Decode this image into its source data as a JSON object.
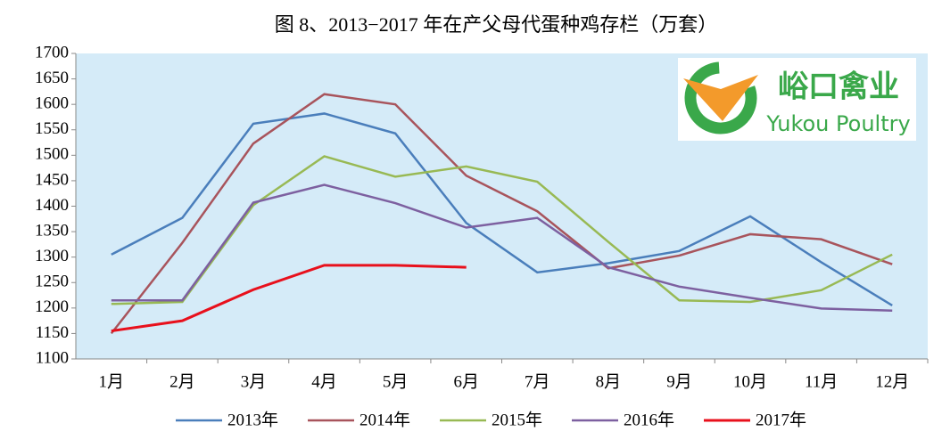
{
  "chart_data": {
    "type": "line",
    "title": "图 8、2013−2017 年在产父母代蛋种鸡存栏（万套）",
    "categories": [
      "1月",
      "2月",
      "3月",
      "4月",
      "5月",
      "6月",
      "7月",
      "8月",
      "9月",
      "10月",
      "11月",
      "12月"
    ],
    "series": [
      {
        "name": "2013年",
        "color": "#4a7ebb",
        "values": [
          1305,
          1377,
          1562,
          1582,
          1543,
          1367,
          1270,
          1288,
          1312,
          1380,
          1290,
          1205
        ]
      },
      {
        "name": "2014年",
        "color": "#a8545c",
        "values": [
          1150,
          1328,
          1523,
          1620,
          1600,
          1460,
          1390,
          1278,
          1303,
          1345,
          1335,
          1286
        ]
      },
      {
        "name": "2015年",
        "color": "#98b954",
        "values": [
          1208,
          1212,
          1402,
          1498,
          1458,
          1478,
          1448,
          1330,
          1215,
          1212,
          1235,
          1305
        ]
      },
      {
        "name": "2016年",
        "color": "#7d60a0",
        "values": [
          1215,
          1215,
          1407,
          1442,
          1406,
          1358,
          1377,
          1280,
          1242,
          1220,
          1199,
          1195
        ]
      },
      {
        "name": "2017年",
        "color": "#e8101c",
        "values": [
          1155,
          1175,
          1236,
          1284,
          1284,
          1280,
          null,
          null,
          null,
          null,
          null,
          null
        ]
      }
    ],
    "ylim": [
      1100,
      1700
    ],
    "yticks": [
      1100,
      1150,
      1200,
      1250,
      1300,
      1350,
      1400,
      1450,
      1500,
      1550,
      1600,
      1650,
      1700
    ],
    "grid": false,
    "legend": "bottom",
    "logo": {
      "name": "峪口禽业",
      "subtitle": "Yukou Poultry"
    }
  }
}
